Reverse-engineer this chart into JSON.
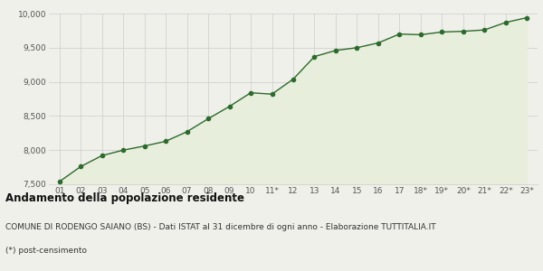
{
  "x_labels": [
    "01",
    "02",
    "03",
    "04",
    "05",
    "06",
    "07",
    "08",
    "09",
    "10",
    "11*",
    "12",
    "13",
    "14",
    "15",
    "16",
    "17",
    "18*",
    "19*",
    "20*",
    "21*",
    "22*",
    "23*"
  ],
  "y_values": [
    7540,
    7760,
    7920,
    8000,
    8060,
    8130,
    8270,
    8460,
    8640,
    8840,
    8820,
    9040,
    9370,
    9460,
    9500,
    9570,
    9700,
    9690,
    9730,
    9740,
    9760,
    9870,
    9940
  ],
  "line_color": "#2d6a2d",
  "fill_color": "#e8eedc",
  "marker_color": "#2d6a2d",
  "background_color": "#f0f0ea",
  "grid_color": "#cccccc",
  "ylim": [
    7500,
    10000
  ],
  "yticks": [
    7500,
    8000,
    8500,
    9000,
    9500,
    10000
  ],
  "title": "Andamento della popolazione residente",
  "subtitle": "COMUNE DI RODENGO SAIANO (BS) - Dati ISTAT al 31 dicembre di ogni anno - Elaborazione TUTTITALIA.IT",
  "footnote": "(*) post-censimento",
  "title_fontsize": 8.5,
  "subtitle_fontsize": 6.5,
  "footnote_fontsize": 6.5,
  "axis_fontsize": 6.5
}
